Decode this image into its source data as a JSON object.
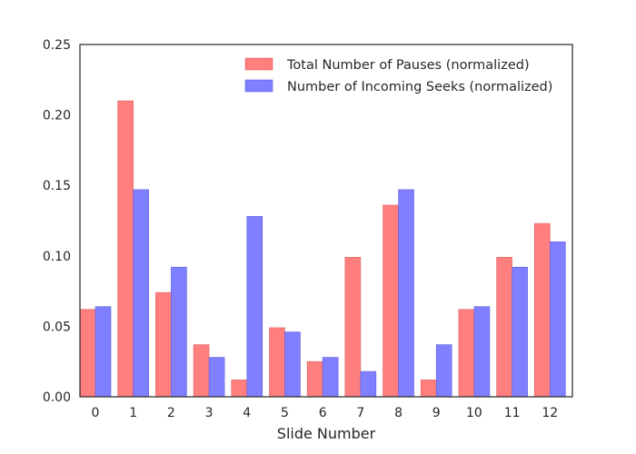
{
  "chart_data": {
    "type": "bar",
    "title": "",
    "xlabel": "Slide Number",
    "ylabel": "",
    "categories": [
      "0",
      "1",
      "2",
      "3",
      "4",
      "5",
      "6",
      "7",
      "8",
      "9",
      "10",
      "11",
      "12"
    ],
    "ylim": [
      0,
      0.25
    ],
    "yticks": [
      "0.00",
      "0.05",
      "0.10",
      "0.15",
      "0.20",
      "0.25"
    ],
    "legend_position": "top-right",
    "grid": false,
    "series": [
      {
        "name": "Total Number of Pauses (normalized)",
        "color": "#ff7f7f",
        "edge": "#e06060",
        "values": [
          0.062,
          0.21,
          0.074,
          0.037,
          0.012,
          0.049,
          0.025,
          0.099,
          0.136,
          0.012,
          0.062,
          0.099,
          0.123
        ]
      },
      {
        "name": "Number of Incoming Seeks (normalized)",
        "color": "#7f7fff",
        "edge": "#6060e0",
        "values": [
          0.064,
          0.147,
          0.092,
          0.028,
          0.128,
          0.046,
          0.028,
          0.018,
          0.147,
          0.037,
          0.064,
          0.092,
          0.11
        ]
      }
    ]
  }
}
